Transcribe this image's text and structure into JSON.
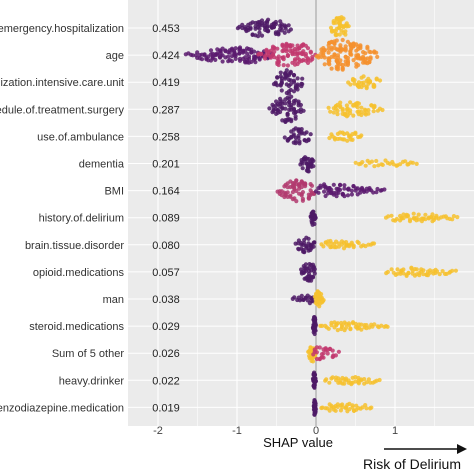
{
  "chart_data": {
    "type": "scatter",
    "subtype": "shap-beeswarm",
    "xlabel": "SHAP value",
    "xlim": [
      -2.0,
      1.55
    ],
    "xticks": [
      -2,
      -1,
      0,
      1
    ],
    "grid": true,
    "annotation": "Risk of Delirium",
    "colors": {
      "low": "#5b1a6e",
      "mid": "#c2386e",
      "high": "#f5a623",
      "bright": "#f6c12e",
      "panel": "#ebebeb",
      "grid": "#ffffff",
      "zero_line": "#999999"
    },
    "features": [
      {
        "label": "emergency.hospitalization",
        "mean_abs": "0.453",
        "clusters": [
          {
            "from": -1.0,
            "to": -0.3,
            "center": -0.62,
            "spread": 8,
            "color": "#4e1a66"
          },
          {
            "from": 0.18,
            "to": 0.42,
            "center": 0.3,
            "spread": 10,
            "color": "#f6c12e"
          }
        ]
      },
      {
        "label": "age",
        "mean_abs": "0.424",
        "clusters": [
          {
            "from": -1.65,
            "to": -0.55,
            "center": -0.85,
            "spread": 7,
            "color": "#5b1a6e"
          },
          {
            "from": -0.75,
            "to": 0.0,
            "center": -0.25,
            "spread": 11,
            "color": "#c2386e"
          },
          {
            "from": 0.0,
            "to": 0.8,
            "center": 0.3,
            "spread": 14,
            "color": "#f5902e"
          }
        ]
      },
      {
        "label": "hospitalization.intensive.care.unit",
        "mean_abs": "0.419",
        "clusters": [
          {
            "from": -0.55,
            "to": -0.15,
            "center": -0.35,
            "spread": 11,
            "color": "#4e1a66"
          },
          {
            "from": 0.4,
            "to": 0.82,
            "center": 0.6,
            "spread": 6,
            "color": "#f6c12e"
          }
        ]
      },
      {
        "label": "schedule.of.treatment.surgery",
        "mean_abs": "0.287",
        "clusters": [
          {
            "from": -0.6,
            "to": -0.15,
            "center": -0.35,
            "spread": 12,
            "color": "#4e1a66"
          },
          {
            "from": 0.15,
            "to": 0.85,
            "center": 0.35,
            "spread": 6,
            "color": "#f6c12e"
          }
        ]
      },
      {
        "label": "use.of.ambulance",
        "mean_abs": "0.258",
        "clusters": [
          {
            "from": -0.4,
            "to": -0.05,
            "center": -0.25,
            "spread": 7,
            "color": "#4e1a66"
          },
          {
            "from": 0.15,
            "to": 0.6,
            "center": 0.35,
            "spread": 4,
            "color": "#f6c12e"
          }
        ]
      },
      {
        "label": "dementia",
        "mean_abs": "0.201",
        "clusters": [
          {
            "from": -0.2,
            "to": -0.02,
            "center": -0.1,
            "spread": 7,
            "color": "#4e1a66"
          },
          {
            "from": 0.5,
            "to": 1.28,
            "center": 0.8,
            "spread": 2,
            "color": "#f6c12e"
          }
        ]
      },
      {
        "label": "BMI",
        "mean_abs": "0.164",
        "clusters": [
          {
            "from": -0.5,
            "to": 0.0,
            "center": -0.2,
            "spread": 10,
            "color": "#b23a6e"
          },
          {
            "from": 0.0,
            "to": 0.88,
            "center": 0.1,
            "spread": 5,
            "color": "#5b1a6e"
          }
        ]
      },
      {
        "label": "history.of.delirium",
        "mean_abs": "0.089",
        "clusters": [
          {
            "from": -0.07,
            "to": 0.0,
            "center": -0.03,
            "spread": 7,
            "color": "#4e1a66"
          },
          {
            "from": 0.88,
            "to": 1.8,
            "center": 1.2,
            "spread": 3,
            "color": "#f6c12e"
          }
        ]
      },
      {
        "label": "brain.tissue.disorder",
        "mean_abs": "0.080",
        "clusters": [
          {
            "from": -0.26,
            "to": 0.0,
            "center": -0.12,
            "spread": 7,
            "color": "#4e1a66"
          },
          {
            "from": 0.05,
            "to": 0.76,
            "center": 0.2,
            "spread": 3,
            "color": "#f6c12e"
          }
        ]
      },
      {
        "label": "opioid.medications",
        "mean_abs": "0.057",
        "clusters": [
          {
            "from": -0.2,
            "to": 0.0,
            "center": -0.06,
            "spread": 9,
            "color": "#4e1a66"
          },
          {
            "from": 0.88,
            "to": 1.78,
            "center": 1.2,
            "spread": 3,
            "color": "#f6c12e"
          }
        ]
      },
      {
        "label": "man",
        "mean_abs": "0.038",
        "clusters": [
          {
            "from": -0.3,
            "to": -0.02,
            "center": -0.05,
            "spread": 3,
            "color": "#4e1a66"
          },
          {
            "from": -0.02,
            "to": 0.1,
            "center": 0.03,
            "spread": 7,
            "color": "#f6c12e"
          }
        ]
      },
      {
        "label": "steroid.medications",
        "mean_abs": "0.029",
        "clusters": [
          {
            "from": -0.04,
            "to": 0.0,
            "center": -0.02,
            "spread": 8,
            "color": "#4e1a66"
          },
          {
            "from": 0.05,
            "to": 0.93,
            "center": 0.3,
            "spread": 3,
            "color": "#f6c12e"
          }
        ]
      },
      {
        "label": "Sum of 5 other",
        "mean_abs": "0.026",
        "clusters": [
          {
            "from": -0.1,
            "to": 0.0,
            "center": -0.03,
            "spread": 8,
            "color": "#f6c12e"
          },
          {
            "from": -0.05,
            "to": 0.3,
            "center": 0.02,
            "spread": 5,
            "color": "#c2386e"
          }
        ]
      },
      {
        "label": "heavy.drinker",
        "mean_abs": "0.022",
        "clusters": [
          {
            "from": -0.04,
            "to": 0.0,
            "center": -0.02,
            "spread": 7,
            "color": "#4e1a66"
          },
          {
            "from": 0.1,
            "to": 0.82,
            "center": 0.4,
            "spread": 3,
            "color": "#f6c12e"
          }
        ]
      },
      {
        "label": "use.of.benzodiazepine.medication",
        "mean_abs": "0.019",
        "clusters": [
          {
            "from": -0.03,
            "to": 0.0,
            "center": -0.015,
            "spread": 7,
            "color": "#4e1a66"
          },
          {
            "from": 0.05,
            "to": 0.72,
            "center": 0.3,
            "spread": 3,
            "color": "#f6c12e"
          }
        ]
      }
    ]
  }
}
